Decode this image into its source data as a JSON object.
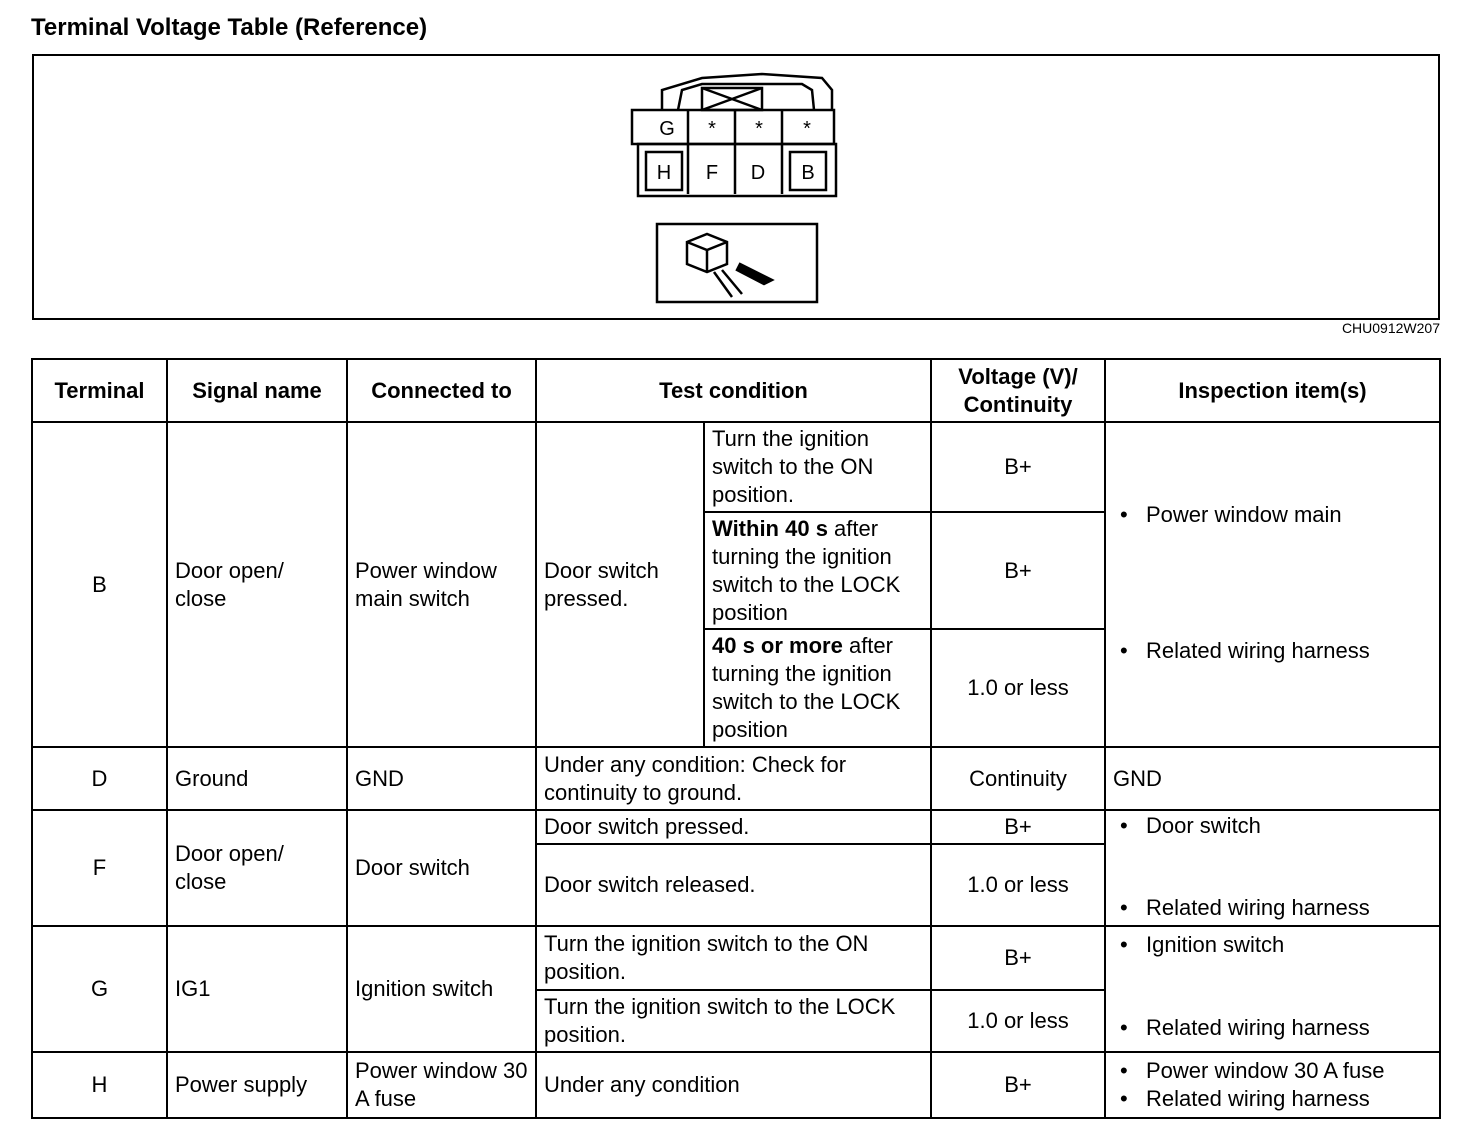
{
  "title": "Terminal Voltage Table (Reference)",
  "figure": {
    "code": "CHU0912W207",
    "top_row": [
      "G",
      "*",
      "*",
      "*"
    ],
    "bottom_row": [
      "H",
      "F",
      "D",
      "B"
    ]
  },
  "headers": [
    "Terminal",
    "Signal name",
    "Connected to",
    "Test condition",
    "Voltage (V)/ Continuity",
    "Inspection item(s)"
  ],
  "rows": {
    "B": {
      "terminal": "B",
      "signal": "Door open/ close",
      "connected": "Power window main switch",
      "test": "Door switch pressed.",
      "sub": [
        {
          "bold": "",
          "text": "Turn the ignition switch to the ON position.",
          "value": "B+"
        },
        {
          "bold": "Within 40 s",
          "text": " after turning the ignition switch to the LOCK position",
          "value": "B+"
        },
        {
          "bold": "40 s or more",
          "text": " after turning the ignition switch to the LOCK position",
          "value": "1.0 or less"
        }
      ],
      "inspection": [
        "Power window main",
        "Related wiring harness"
      ]
    },
    "D": {
      "terminal": "D",
      "signal": "Ground",
      "connected": "GND",
      "test": "Under any condition: Check for continuity to ground.",
      "value": "Continuity",
      "inspection": "GND"
    },
    "F": {
      "terminal": "F",
      "signal": "Door open/ close",
      "connected": "Door switch",
      "sub": [
        {
          "text": "Door switch pressed.",
          "value": "B+"
        },
        {
          "text": "Door switch released.",
          "value": "1.0 or less"
        }
      ],
      "inspection": [
        "Door switch",
        "Related wiring harness"
      ]
    },
    "G": {
      "terminal": "G",
      "signal": "IG1",
      "connected": "Ignition switch",
      "sub": [
        {
          "text": "Turn the ignition switch to the ON position.",
          "value": "B+"
        },
        {
          "text": "Turn the ignition switch to the LOCK position.",
          "value": "1.0 or less"
        }
      ],
      "inspection": [
        "Ignition switch",
        "Related wiring harness"
      ]
    },
    "H": {
      "terminal": "H",
      "signal": "Power supply",
      "connected": "Power window 30 A fuse",
      "test": "Under any condition",
      "value": "B+",
      "inspection": [
        "Power window 30 A fuse",
        "Related wiring harness"
      ]
    }
  },
  "bullet": "•"
}
